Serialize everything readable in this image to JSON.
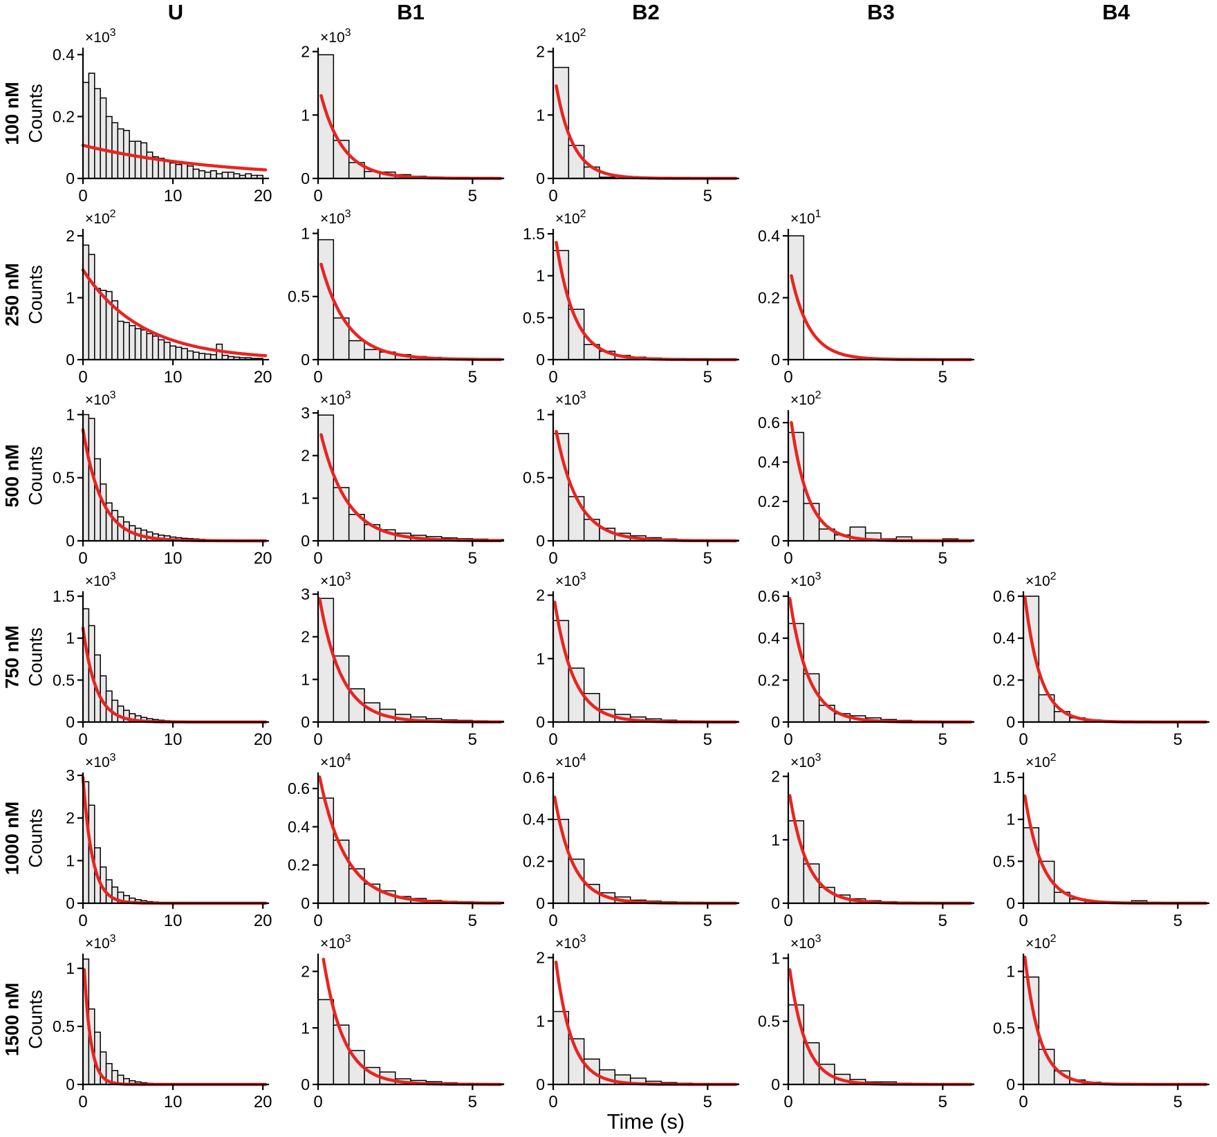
{
  "figure": {
    "xlabel": "Time (s)",
    "ylabel": "Counts",
    "col_headers": [
      "U",
      "B1",
      "B2",
      "B3",
      "B4"
    ],
    "row_labels": [
      "100 nM",
      "250 nM",
      "500 nM",
      "750 nM",
      "1000 nM",
      "1500 nM"
    ],
    "colors": {
      "bar_fill": "#e9e9e9",
      "bar_stroke": "#000000",
      "fit_line": "#e82420",
      "axis": "#000000"
    }
  },
  "chart_data": {
    "type": "bar",
    "subtype": "histogram-grid-with-exponential-fits",
    "grid": {
      "rows": 6,
      "cols": 5
    },
    "x_axes": {
      "U": {
        "max": 20.6,
        "ticks": [
          0,
          10,
          20
        ]
      },
      "B": {
        "max": 6.0,
        "ticks": [
          0,
          5
        ]
      }
    },
    "panels": [
      {
        "row": 0,
        "col": 0,
        "axis": "U",
        "exp": 3,
        "yticks": [
          0,
          0.2,
          0.4
        ],
        "ymax": 0.42,
        "bin_width": 0.645,
        "bars": [
          0.31,
          0.34,
          0.29,
          0.26,
          0.2,
          0.18,
          0.16,
          0.155,
          0.12,
          0.12,
          0.115,
          0.085,
          0.07,
          0.065,
          0.055,
          0.05,
          0.045,
          0.05,
          0.04,
          0.03,
          0.025,
          0.02,
          0.025,
          0.015,
          0.02,
          0.02,
          0.015,
          0.01,
          0.015,
          0.01,
          0.01
        ],
        "fit": {
          "A": 0.107,
          "tau": 15.0,
          "from": 0.0
        }
      },
      {
        "row": 0,
        "col": 1,
        "axis": "B",
        "exp": 3,
        "yticks": [
          0,
          1,
          2
        ],
        "ymax": 2.05,
        "bin_width": 0.5,
        "bars": [
          1.95,
          0.6,
          0.25,
          0.11,
          0.1,
          0.06,
          0.035,
          0.02,
          0.015,
          0.01,
          0.008,
          0.005
        ],
        "fit": {
          "A": 1.5,
          "tau": 0.72,
          "from": 0.1
        }
      },
      {
        "row": 0,
        "col": 2,
        "axis": "B",
        "exp": 2,
        "yticks": [
          0,
          1,
          2
        ],
        "ymax": 2.05,
        "bin_width": 0.5,
        "bars": [
          1.75,
          0.52,
          0.18,
          0.02,
          0.03,
          0.012,
          0.01,
          0.006,
          0.004,
          0.003,
          0.002,
          0.002
        ],
        "fit": {
          "A": 1.75,
          "tau": 0.55,
          "from": 0.1
        }
      },
      {
        "row": 1,
        "col": 0,
        "axis": "U",
        "exp": 2,
        "yticks": [
          0,
          1,
          2
        ],
        "ymax": 2.1,
        "bin_width": 0.645,
        "bars": [
          1.85,
          1.7,
          1.15,
          1.12,
          1.1,
          0.95,
          0.62,
          0.6,
          0.55,
          0.5,
          0.48,
          0.42,
          0.38,
          0.32,
          0.28,
          0.22,
          0.2,
          0.18,
          0.14,
          0.12,
          0.1,
          0.09,
          0.08,
          0.25,
          0.07,
          0.05,
          0.04,
          0.03,
          0.03,
          0.02,
          0.02
        ],
        "fit": {
          "A": 1.45,
          "tau": 6.5,
          "from": 0.0
        }
      },
      {
        "row": 1,
        "col": 1,
        "axis": "B",
        "exp": 3,
        "yticks": [
          0,
          0.5,
          1
        ],
        "ymax": 1.03,
        "bin_width": 0.5,
        "bars": [
          0.95,
          0.33,
          0.15,
          0.08,
          0.06,
          0.04,
          0.025,
          0.018,
          0.012,
          0.01,
          0.007,
          0.005
        ],
        "fit": {
          "A": 0.85,
          "tau": 0.85,
          "from": 0.1
        }
      },
      {
        "row": 1,
        "col": 2,
        "axis": "B",
        "exp": 2,
        "yticks": [
          0,
          0.5,
          1,
          1.5
        ],
        "ymax": 1.55,
        "bin_width": 0.5,
        "bars": [
          1.3,
          0.6,
          0.18,
          0.1,
          0.05,
          0.03,
          0.02,
          0.012,
          0.008,
          0.005,
          0.004,
          0.003
        ],
        "fit": {
          "A": 1.65,
          "tau": 0.6,
          "from": 0.1
        }
      },
      {
        "row": 1,
        "col": 3,
        "axis": "B",
        "exp": 1,
        "yticks": [
          0,
          0.2,
          0.4
        ],
        "ymax": 0.42,
        "bin_width": 0.5,
        "bars": [
          0.4
        ],
        "fit": {
          "A": 0.32,
          "tau": 0.6,
          "from": 0.1
        }
      },
      {
        "row": 2,
        "col": 0,
        "axis": "U",
        "exp": 3,
        "yticks": [
          0,
          0.5,
          1
        ],
        "ymax": 1.03,
        "bin_width": 0.645,
        "bars": [
          1.0,
          0.97,
          0.65,
          0.45,
          0.3,
          0.24,
          0.19,
          0.15,
          0.12,
          0.1,
          0.085,
          0.07,
          0.055,
          0.045,
          0.04,
          0.03,
          0.025,
          0.02,
          0.018,
          0.015,
          0.012,
          0.01,
          0.008,
          0.008,
          0.006,
          0.005,
          0.005,
          0.004,
          0.004,
          0.003,
          0.003
        ],
        "fit": {
          "A": 0.88,
          "tau": 2.1,
          "from": 0.0
        }
      },
      {
        "row": 2,
        "col": 1,
        "axis": "B",
        "exp": 3,
        "yticks": [
          0,
          1,
          2,
          3
        ],
        "ymax": 3.05,
        "bin_width": 0.5,
        "bars": [
          2.95,
          1.25,
          0.62,
          0.38,
          0.26,
          0.18,
          0.13,
          0.1,
          0.07,
          0.05,
          0.04,
          0.03
        ],
        "fit": {
          "A": 2.8,
          "tau": 0.85,
          "from": 0.1
        }
      },
      {
        "row": 2,
        "col": 2,
        "axis": "B",
        "exp": 3,
        "yticks": [
          0,
          0.5,
          1
        ],
        "ymax": 1.03,
        "bin_width": 0.5,
        "bars": [
          0.85,
          0.35,
          0.17,
          0.1,
          0.06,
          0.04,
          0.025,
          0.015,
          0.01,
          0.008,
          0.006,
          0.005
        ],
        "fit": {
          "A": 1.0,
          "tau": 0.7,
          "from": 0.1
        }
      },
      {
        "row": 2,
        "col": 3,
        "axis": "B",
        "exp": 2,
        "yticks": [
          0,
          0.2,
          0.4,
          0.6
        ],
        "ymax": 0.66,
        "bin_width": 0.5,
        "bars": [
          0.55,
          0.19,
          0.06,
          0.03,
          0.07,
          0.04,
          0.01,
          0.02,
          0.005,
          0.005,
          0.01,
          0.005
        ],
        "fit": {
          "A": 0.72,
          "tau": 0.55,
          "from": 0.1
        }
      },
      {
        "row": 3,
        "col": 0,
        "axis": "U",
        "exp": 3,
        "yticks": [
          0,
          0.5,
          1,
          1.5
        ],
        "ymax": 1.55,
        "bin_width": 0.645,
        "bars": [
          1.35,
          1.15,
          0.8,
          0.55,
          0.37,
          0.26,
          0.19,
          0.14,
          0.1,
          0.075,
          0.055,
          0.04,
          0.03,
          0.022,
          0.017,
          0.012,
          0.01,
          0.008,
          0.006,
          0.005,
          0.004,
          0.003,
          0.003,
          0.002,
          0.002,
          0.002,
          0.001,
          0.001,
          0.001,
          0.001,
          0.001
        ],
        "fit": {
          "A": 1.12,
          "tau": 1.45,
          "from": 0.0
        }
      },
      {
        "row": 3,
        "col": 1,
        "axis": "B",
        "exp": 3,
        "yticks": [
          0,
          1,
          2,
          3
        ],
        "ymax": 3.05,
        "bin_width": 0.5,
        "bars": [
          2.9,
          1.55,
          0.78,
          0.45,
          0.3,
          0.18,
          0.12,
          0.08,
          0.05,
          0.04,
          0.03,
          0.02
        ],
        "fit": {
          "A": 3.1,
          "tau": 0.72,
          "from": 0.05
        }
      },
      {
        "row": 3,
        "col": 2,
        "axis": "B",
        "exp": 3,
        "yticks": [
          0,
          1,
          2
        ],
        "ymax": 2.05,
        "bin_width": 0.5,
        "bars": [
          1.6,
          0.85,
          0.45,
          0.2,
          0.12,
          0.08,
          0.05,
          0.03,
          0.02,
          0.015,
          0.01,
          0.008
        ],
        "fit": {
          "A": 2.05,
          "tau": 0.62,
          "from": 0.05
        }
      },
      {
        "row": 3,
        "col": 3,
        "axis": "B",
        "exp": 3,
        "yticks": [
          0,
          0.2,
          0.4,
          0.6
        ],
        "ymax": 0.62,
        "bin_width": 0.5,
        "bars": [
          0.47,
          0.23,
          0.08,
          0.04,
          0.03,
          0.02,
          0.012,
          0.008,
          0.005,
          0.004,
          0.003,
          0.002
        ],
        "fit": {
          "A": 0.64,
          "tau": 0.6,
          "from": 0.05
        }
      },
      {
        "row": 3,
        "col": 4,
        "axis": "B",
        "exp": 2,
        "yticks": [
          0,
          0.2,
          0.4,
          0.6
        ],
        "ymax": 0.62,
        "bin_width": 0.5,
        "bars": [
          0.6,
          0.13,
          0.05,
          0.02,
          0.01,
          0.005,
          0.004,
          0.003,
          0.002,
          0.002,
          0.001,
          0.001
        ],
        "fit": {
          "A": 0.66,
          "tau": 0.5,
          "from": 0.05
        }
      },
      {
        "row": 4,
        "col": 0,
        "axis": "U",
        "exp": 3,
        "yticks": [
          0,
          1,
          2,
          3
        ],
        "ymax": 3.05,
        "bin_width": 0.645,
        "bars": [
          2.85,
          2.3,
          1.3,
          0.85,
          0.55,
          0.38,
          0.26,
          0.18,
          0.12,
          0.085,
          0.06,
          0.04,
          0.03,
          0.02,
          0.015,
          0.01,
          0.008,
          0.006,
          0.005,
          0.004,
          0.003,
          0.003,
          0.002,
          0.002,
          0.002,
          0.001,
          0.001,
          0.001,
          0.001,
          0.001,
          0.001
        ],
        "fit": {
          "A": 2.95,
          "tau": 1.05,
          "from": 0.0
        }
      },
      {
        "row": 4,
        "col": 1,
        "axis": "B",
        "exp": 4,
        "yticks": [
          0,
          0.2,
          0.4,
          0.6
        ],
        "ymax": 0.68,
        "bin_width": 0.5,
        "bars": [
          0.55,
          0.33,
          0.18,
          0.1,
          0.065,
          0.035,
          0.025,
          0.015,
          0.01,
          0.008,
          0.006,
          0.005
        ],
        "fit": {
          "A": 0.7,
          "tau": 0.85,
          "from": 0.05
        }
      },
      {
        "row": 4,
        "col": 2,
        "axis": "B",
        "exp": 4,
        "yticks": [
          0,
          0.2,
          0.4,
          0.6
        ],
        "ymax": 0.62,
        "bin_width": 0.5,
        "bars": [
          0.4,
          0.21,
          0.09,
          0.05,
          0.03,
          0.015,
          0.01,
          0.007,
          0.005,
          0.004,
          0.003,
          0.002
        ],
        "fit": {
          "A": 0.55,
          "tau": 0.6,
          "from": 0.05
        }
      },
      {
        "row": 4,
        "col": 3,
        "axis": "B",
        "exp": 3,
        "yticks": [
          0,
          1,
          2
        ],
        "ymax": 2.05,
        "bin_width": 0.5,
        "bars": [
          1.3,
          0.62,
          0.25,
          0.13,
          0.07,
          0.04,
          0.025,
          0.015,
          0.01,
          0.008,
          0.006,
          0.005
        ],
        "fit": {
          "A": 1.85,
          "tau": 0.58,
          "from": 0.05
        }
      },
      {
        "row": 4,
        "col": 4,
        "axis": "B",
        "exp": 2,
        "yticks": [
          0,
          0.5,
          1,
          1.5
        ],
        "ymax": 1.55,
        "bin_width": 0.5,
        "bars": [
          0.9,
          0.5,
          0.13,
          0.05,
          0.02,
          0.01,
          0.005,
          0.03,
          0.004,
          0.003,
          0.002,
          0.002
        ],
        "fit": {
          "A": 1.4,
          "tau": 0.55,
          "from": 0.05
        }
      },
      {
        "row": 5,
        "col": 0,
        "axis": "U",
        "exp": 3,
        "yticks": [
          0,
          0.5,
          1
        ],
        "ymax": 1.12,
        "bin_width": 0.645,
        "bars": [
          1.08,
          0.65,
          0.45,
          0.28,
          0.18,
          0.12,
          0.08,
          0.05,
          0.032,
          0.022,
          0.015,
          0.01,
          0.007,
          0.005,
          0.004,
          0.003,
          0.002,
          0.002,
          0.001,
          0.001,
          0.001,
          0.001,
          0.001,
          0.001,
          0.001,
          0,
          0,
          0,
          0,
          0,
          0
        ],
        "fit": {
          "A": 1.2,
          "tau": 0.75,
          "from": 0.0
        }
      },
      {
        "row": 5,
        "col": 1,
        "axis": "B",
        "exp": 3,
        "yticks": [
          0,
          1,
          2
        ],
        "ymax": 2.3,
        "bin_width": 0.5,
        "bars": [
          1.5,
          1.05,
          0.6,
          0.3,
          0.22,
          0.1,
          0.07,
          0.05,
          0.03,
          0.02,
          0.015,
          0.01
        ],
        "fit": {
          "A": 2.9,
          "tau": 0.65,
          "from": 0.05
        }
      },
      {
        "row": 5,
        "col": 2,
        "axis": "B",
        "exp": 3,
        "yticks": [
          0,
          1,
          2
        ],
        "ymax": 2.05,
        "bin_width": 0.5,
        "bars": [
          1.15,
          0.72,
          0.4,
          0.23,
          0.15,
          0.1,
          0.05,
          0.03,
          0.02,
          0.015,
          0.01,
          0.008
        ],
        "fit": {
          "A": 2.3,
          "tau": 0.52,
          "from": 0.05
        }
      },
      {
        "row": 5,
        "col": 3,
        "axis": "B",
        "exp": 3,
        "yticks": [
          0,
          0.5,
          1
        ],
        "ymax": 1.03,
        "bin_width": 0.5,
        "bars": [
          0.63,
          0.33,
          0.16,
          0.08,
          0.04,
          0.02,
          0.02,
          0.01,
          0.008,
          0.006,
          0.005,
          0.004
        ],
        "fit": {
          "A": 1.0,
          "tau": 0.52,
          "from": 0.05
        }
      },
      {
        "row": 5,
        "col": 4,
        "axis": "B",
        "exp": 2,
        "yticks": [
          0,
          0.5,
          1
        ],
        "ymax": 1.15,
        "bin_width": 0.5,
        "bars": [
          0.95,
          0.31,
          0.12,
          0.04,
          0.02,
          0.01,
          0.005,
          0.004,
          0.003,
          0.002,
          0.002,
          0.001
        ],
        "fit": {
          "A": 1.25,
          "tau": 0.48,
          "from": 0.05
        }
      }
    ]
  }
}
